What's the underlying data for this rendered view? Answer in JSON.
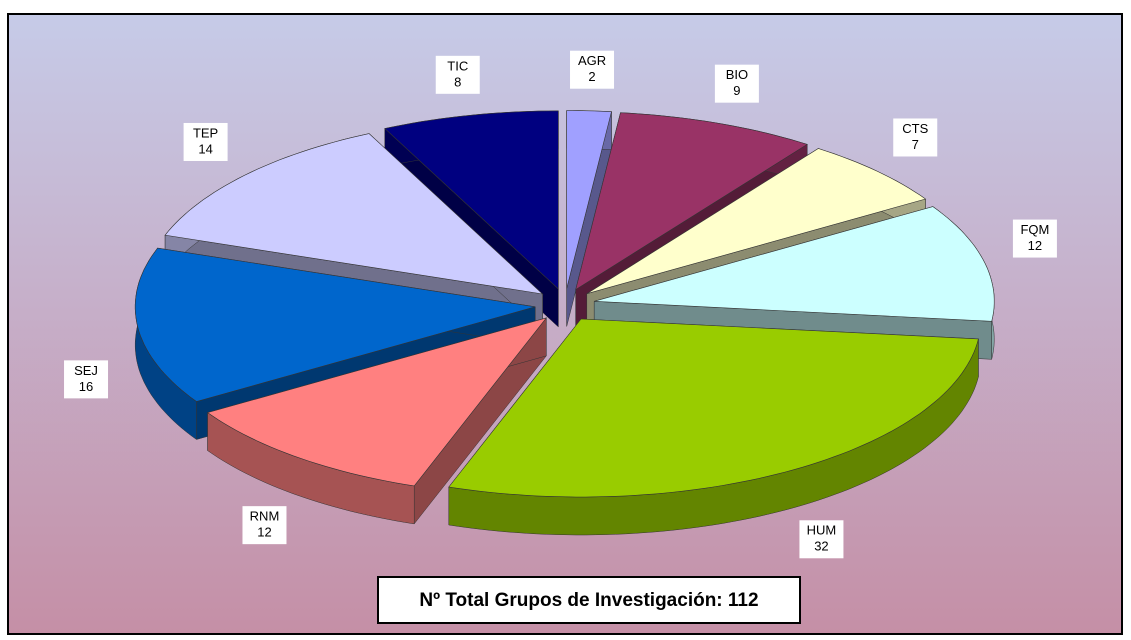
{
  "chart_data": {
    "type": "pie3d",
    "categories": [
      "AGR",
      "BIO",
      "CTS",
      "FQM",
      "HUM",
      "RNM",
      "SEJ",
      "TEP",
      "TIC"
    ],
    "values": [
      2,
      9,
      7,
      12,
      32,
      12,
      16,
      14,
      8
    ],
    "colors": [
      "#a0a0ff",
      "#993366",
      "#ffffcc",
      "#ccffff",
      "#99cc00",
      "#ff8080",
      "#0066cc",
      "#ccccff",
      "#000080"
    ],
    "annotation": "Nº Total Grupos de Investigación: 112"
  }
}
